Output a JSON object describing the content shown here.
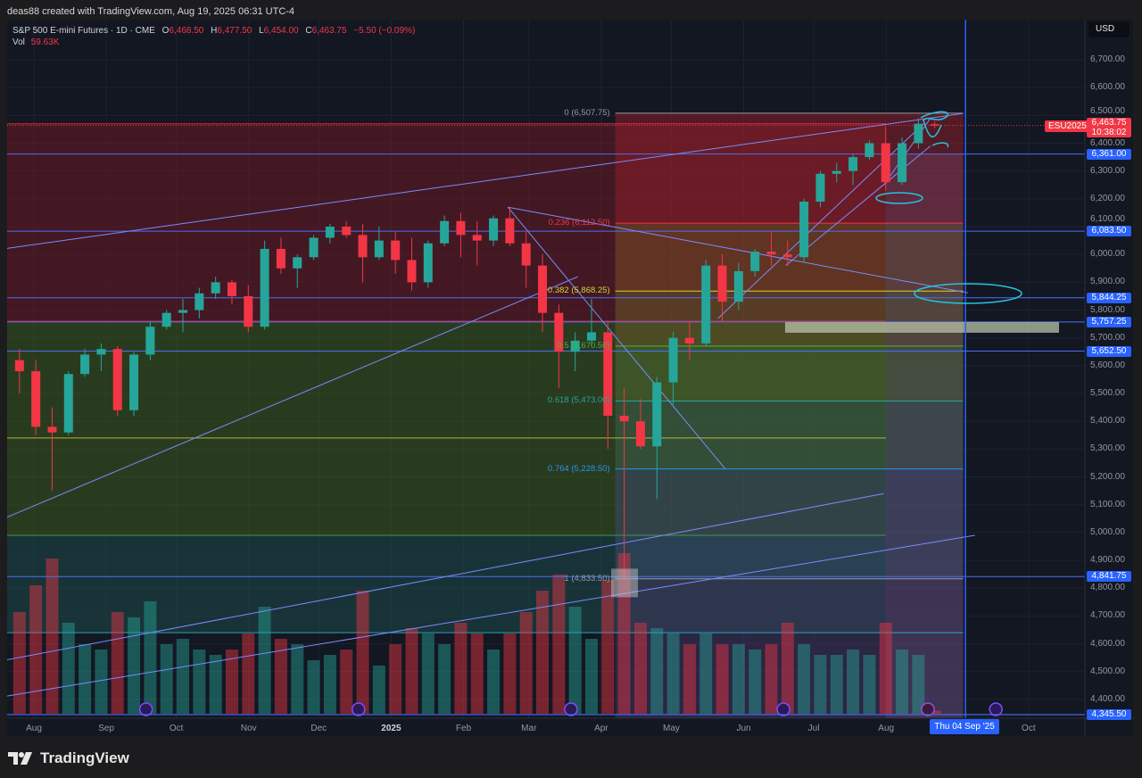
{
  "header": {
    "credit": "deas88 created with TradingView.com, Aug 19, 2025 06:31 UTC-4",
    "symbol": "S&P 500 E-mini Futures · 1D · CME",
    "open_label": "O",
    "open": "6,468.50",
    "high_label": "H",
    "high": "6,477.50",
    "low_label": "L",
    "low": "6,454.00",
    "close_label": "C",
    "close": "6,463.75",
    "change": "−5.50 (−0.09%)",
    "vol_label": "Vol",
    "vol": "59.63K"
  },
  "currency": "USD",
  "last_price": {
    "ticker": "ESU2025",
    "price": "6,463.75",
    "countdown": "10:38:02",
    "color": "#f23645"
  },
  "brand": "TradingView",
  "crosshair_date": "Thu 04 Sep '25",
  "colors": {
    "up": "#26a69a",
    "down": "#f23645",
    "line": "#4c6ef5",
    "badge": "#2962ff",
    "background": "#131722"
  },
  "chart_data": {
    "type": "candlestick",
    "interval": "1D (weekly approximation)",
    "ylim": [
      4345.5,
      6760
    ],
    "y_ticks": [
      "6,700.00",
      "6,600.00",
      "6,500.00",
      "6,400.00",
      "6,300.00",
      "6,200.00",
      "6,100.00",
      "6,000.00",
      "5,900.00",
      "5,800.00",
      "5,700.00",
      "5,600.00",
      "5,500.00",
      "5,400.00",
      "5,300.00",
      "5,200.00",
      "5,100.00",
      "5,000.00",
      "4,900.00",
      "4,800.00",
      "4,700.00",
      "4,600.00",
      "4,500.00",
      "4,400.00"
    ],
    "x_ticks": [
      {
        "label": "Aug",
        "date": "2024-08-01"
      },
      {
        "label": "Sep",
        "date": "2024-09-01"
      },
      {
        "label": "Oct",
        "date": "2024-10-01"
      },
      {
        "label": "Nov",
        "date": "2024-11-01"
      },
      {
        "label": "Dec",
        "date": "2024-12-01"
      },
      {
        "label": "2025",
        "date": "2025-01-01",
        "bold": true
      },
      {
        "label": "Feb",
        "date": "2025-02-01"
      },
      {
        "label": "Mar",
        "date": "2025-03-01"
      },
      {
        "label": "Apr",
        "date": "2025-04-01"
      },
      {
        "label": "May",
        "date": "2025-05-01"
      },
      {
        "label": "Jun",
        "date": "2025-06-01"
      },
      {
        "label": "Jul",
        "date": "2025-07-01"
      },
      {
        "label": "Aug",
        "date": "2025-08-01"
      },
      {
        "label": "Oct",
        "date": "2025-10-01"
      }
    ],
    "candles": [
      [
        "2024-07-22",
        5620,
        5660,
        5500,
        5580,
        1900
      ],
      [
        "2024-07-29",
        5580,
        5620,
        5350,
        5380,
        2400
      ],
      [
        "2024-08-05",
        5380,
        5450,
        5150,
        5360,
        2900
      ],
      [
        "2024-08-12",
        5360,
        5580,
        5350,
        5570,
        1700
      ],
      [
        "2024-08-19",
        5570,
        5660,
        5560,
        5640,
        1300
      ],
      [
        "2024-08-26",
        5640,
        5680,
        5580,
        5660,
        1200
      ],
      [
        "2024-09-02",
        5660,
        5670,
        5420,
        5440,
        1900
      ],
      [
        "2024-09-09",
        5440,
        5650,
        5420,
        5640,
        1800
      ],
      [
        "2024-09-16",
        5640,
        5760,
        5620,
        5740,
        2100
      ],
      [
        "2024-09-23",
        5740,
        5800,
        5730,
        5790,
        1300
      ],
      [
        "2024-09-30",
        5790,
        5840,
        5720,
        5800,
        1400
      ],
      [
        "2024-10-07",
        5800,
        5880,
        5770,
        5860,
        1200
      ],
      [
        "2024-10-14",
        5860,
        5920,
        5840,
        5900,
        1100
      ],
      [
        "2024-10-21",
        5900,
        5910,
        5820,
        5850,
        1200
      ],
      [
        "2024-10-28",
        5850,
        5890,
        5720,
        5740,
        1500
      ],
      [
        "2024-11-04",
        5740,
        6050,
        5730,
        6020,
        2000
      ],
      [
        "2024-11-11",
        6020,
        6060,
        5930,
        5950,
        1400
      ],
      [
        "2024-11-18",
        5950,
        6000,
        5880,
        5990,
        1300
      ],
      [
        "2024-11-25",
        5990,
        6070,
        5980,
        6060,
        1000
      ],
      [
        "2024-12-02",
        6060,
        6110,
        6040,
        6100,
        1100
      ],
      [
        "2024-12-09",
        6100,
        6120,
        6060,
        6070,
        1200
      ],
      [
        "2024-12-16",
        6070,
        6110,
        5900,
        5990,
        2300
      ],
      [
        "2024-12-23",
        5990,
        6100,
        5980,
        6050,
        900
      ],
      [
        "2024-12-30",
        6050,
        6080,
        5930,
        5980,
        1300
      ],
      [
        "2025-01-06",
        5980,
        6060,
        5870,
        5900,
        1600
      ],
      [
        "2025-01-13",
        5900,
        6050,
        5880,
        6040,
        1500
      ],
      [
        "2025-01-20",
        6040,
        6140,
        6030,
        6120,
        1300
      ],
      [
        "2025-01-27",
        6120,
        6150,
        5990,
        6070,
        1700
      ],
      [
        "2025-02-03",
        6070,
        6120,
        5960,
        6050,
        1500
      ],
      [
        "2025-02-10",
        6050,
        6140,
        6030,
        6130,
        1200
      ],
      [
        "2025-02-17",
        6130,
        6170,
        6030,
        6040,
        1500
      ],
      [
        "2025-02-24",
        6040,
        6080,
        5880,
        5960,
        1900
      ],
      [
        "2025-03-03",
        5960,
        6000,
        5720,
        5790,
        2300
      ],
      [
        "2025-03-10",
        5790,
        5820,
        5520,
        5650,
        2600
      ],
      [
        "2025-03-17",
        5650,
        5720,
        5580,
        5690,
        2000
      ],
      [
        "2025-03-24",
        5690,
        5840,
        5670,
        5720,
        1400
      ],
      [
        "2025-03-31",
        5720,
        5760,
        5300,
        5420,
        2500
      ],
      [
        "2025-04-07",
        5420,
        5520,
        4830,
        5400,
        3000
      ],
      [
        "2025-04-14",
        5400,
        5480,
        5300,
        5310,
        1700
      ],
      [
        "2025-04-21",
        5310,
        5560,
        5120,
        5540,
        1600
      ],
      [
        "2025-04-28",
        5540,
        5720,
        5460,
        5700,
        1500
      ],
      [
        "2025-05-05",
        5700,
        5760,
        5620,
        5680,
        1300
      ],
      [
        "2025-05-12",
        5680,
        5980,
        5670,
        5960,
        1500
      ],
      [
        "2025-05-19",
        5960,
        6000,
        5760,
        5830,
        1300
      ],
      [
        "2025-05-26",
        5830,
        5970,
        5800,
        5940,
        1300
      ],
      [
        "2025-06-02",
        5940,
        6020,
        5920,
        6010,
        1200
      ],
      [
        "2025-06-09",
        6010,
        6080,
        5960,
        6000,
        1300
      ],
      [
        "2025-06-16",
        6000,
        6050,
        5960,
        5990,
        1700
      ],
      [
        "2025-06-23",
        5990,
        6200,
        5970,
        6190,
        1300
      ],
      [
        "2025-06-30",
        6190,
        6300,
        6170,
        6290,
        1100
      ],
      [
        "2025-07-07",
        6290,
        6330,
        6260,
        6300,
        1100
      ],
      [
        "2025-07-14",
        6300,
        6360,
        6250,
        6350,
        1200
      ],
      [
        "2025-07-21",
        6350,
        6410,
        6340,
        6400,
        1100
      ],
      [
        "2025-07-28",
        6400,
        6460,
        6230,
        6260,
        1700
      ],
      [
        "2025-08-04",
        6260,
        6420,
        6250,
        6400,
        1200
      ],
      [
        "2025-08-11",
        6400,
        6490,
        6380,
        6470,
        1100
      ],
      [
        "2025-08-18",
        6468.5,
        6477.5,
        6454,
        6463.75,
        60
      ]
    ],
    "candle_columns": [
      "week",
      "open",
      "high",
      "low",
      "close",
      "avg_volume_k"
    ],
    "fib_retracement": {
      "from_date": "2025-04-07",
      "to_date": "2025-09-03",
      "levels": [
        {
          "label": "0 (6,507.75)",
          "price": 6507.75,
          "color": "#9598a1"
        },
        {
          "label": "0.236 (6,112.50)",
          "price": 6112.5,
          "color": "#f23645"
        },
        {
          "label": "0.382 (5,868.25)",
          "price": 5868.25,
          "color": "#d4d435"
        },
        {
          "label": "0.5 (5,670.50)",
          "price": 5670.5,
          "color": "#4caf50"
        },
        {
          "label": "0.618 (5,473.00)",
          "price": 5473.0,
          "color": "#26a69a"
        },
        {
          "label": "0.764 (5,228.50)",
          "price": 5228.5,
          "color": "#2196f3"
        },
        {
          "label": "1 (4,833.50)",
          "price": 4833.5,
          "color": "#9598a1"
        }
      ]
    },
    "horizontal_levels": [
      {
        "label": "6,361.00",
        "price": 6361.0
      },
      {
        "label": "6,083.50",
        "price": 6083.5
      },
      {
        "label": "5,844.25",
        "price": 5844.25
      },
      {
        "label": "5,757.25",
        "price": 5757.25
      },
      {
        "label": "5,652.50",
        "price": 5652.5
      },
      {
        "label": "4,841.75",
        "price": 4841.75
      },
      {
        "label": "4,345.50",
        "price": 4345.5
      }
    ],
    "trend_lines": [
      [
        [
          "2024-07-19",
          6020
        ],
        [
          "2025-09-03",
          6507
        ]
      ],
      [
        [
          "2025-02-20",
          6170
        ],
        [
          "2025-09-05",
          5862
        ]
      ],
      [
        [
          "2025-02-20",
          6170
        ],
        [
          "2025-05-24",
          5230
        ]
      ],
      [
        [
          "2024-07-19",
          5050
        ],
        [
          "2025-03-22",
          5920
        ]
      ],
      [
        [
          "2024-07-19",
          4540
        ],
        [
          "2025-07-31",
          5140
        ]
      ],
      [
        [
          "2024-07-19",
          4410
        ],
        [
          "2025-09-08",
          4990
        ]
      ],
      [
        [
          "2025-05-21",
          5770
        ],
        [
          "2025-08-17",
          6470
        ]
      ],
      [
        [
          "2025-06-19",
          5960
        ],
        [
          "2025-08-20",
          6390
        ]
      ],
      [
        [
          "2025-07-31",
          6250
        ],
        [
          "2025-08-20",
          6490
        ]
      ]
    ],
    "vertical_marker_date": "2025-09-04",
    "current_price": 6463.75
  }
}
